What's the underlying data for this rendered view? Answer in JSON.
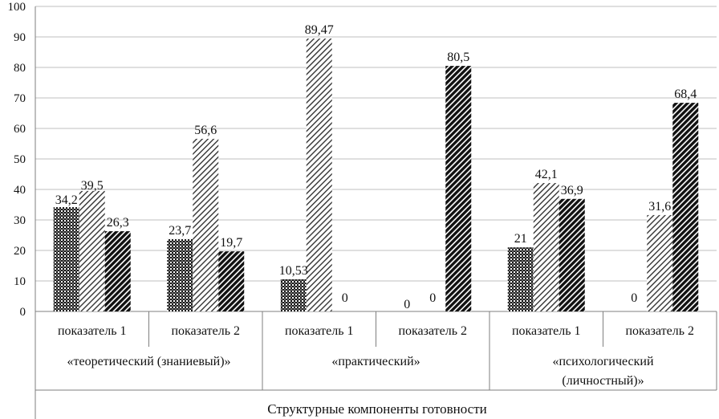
{
  "chart_data": {
    "type": "bar",
    "xlabel": "Структурные компоненты готовности",
    "ylim": [
      0,
      100
    ],
    "yticks": [
      0,
      10,
      20,
      30,
      40,
      50,
      60,
      70,
      80,
      90,
      100
    ],
    "grid": true,
    "legend": "none",
    "groups": [
      {
        "label": [
          "«теоретический (знаниевый)»"
        ],
        "categories": [
          {
            "label": "показатель 1",
            "values": [
              34.2,
              39.5,
              26.3
            ],
            "labels": [
              "34,2",
              "39,5",
              "26,3"
            ]
          },
          {
            "label": "показатель 2",
            "values": [
              23.7,
              56.6,
              19.7
            ],
            "labels": [
              "23,7",
              "56,6",
              "19,7"
            ]
          }
        ]
      },
      {
        "label": [
          "«практический»"
        ],
        "categories": [
          {
            "label": "показатель 1",
            "values": [
              10.53,
              89.47,
              0
            ],
            "labels": [
              "10,53",
              "89,47",
              "0"
            ]
          },
          {
            "label": "показатель 2",
            "values": [
              0,
              0,
              80.5
            ],
            "labels": [
              "0",
              "0",
              "80,5"
            ]
          }
        ]
      },
      {
        "label": [
          "«психологический",
          "(личностный)»"
        ],
        "categories": [
          {
            "label": "показатель 1",
            "values": [
              21,
              42.1,
              36.9
            ],
            "labels": [
              "21",
              "42,1",
              "36,9"
            ]
          },
          {
            "label": "показатель 2",
            "values": [
              0,
              31.6,
              68.4
            ],
            "labels": [
              "0",
              "31,6",
              "68,4"
            ]
          }
        ]
      }
    ],
    "series_patterns": [
      "dense-crosshatch",
      "light-diagonal",
      "dark-diagonal"
    ]
  }
}
